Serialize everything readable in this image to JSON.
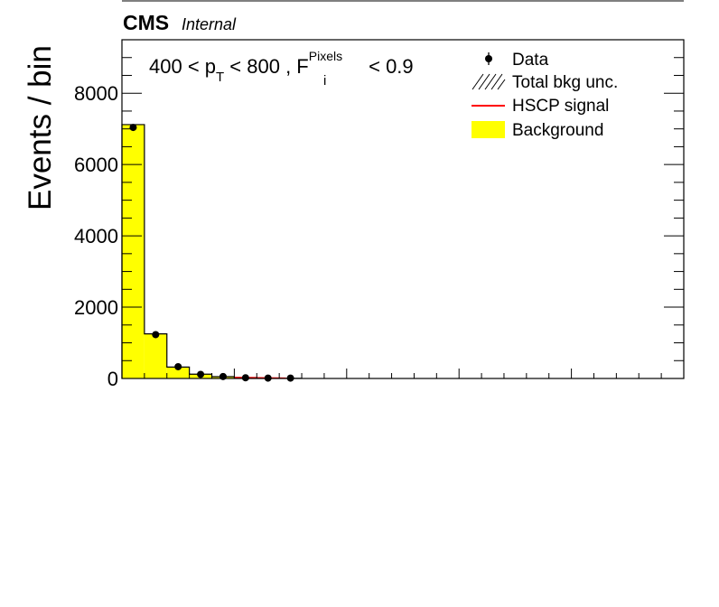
{
  "header": {
    "experiment": "CMS",
    "status": "Internal"
  },
  "chart_data": {
    "type": "bar",
    "ylabel": "Events / bin",
    "ylim": [
      0,
      9500
    ],
    "yticks": [
      0,
      2000,
      4000,
      6000,
      8000
    ],
    "xlim": [
      0,
      25
    ],
    "annotation": {
      "pre": "400 < p",
      "pre_sub": "T",
      "mid": " < 800 , F",
      "sup": "Pixels",
      "sub": "i",
      "post": " < 0.9"
    },
    "legend": {
      "position": "top-right",
      "entries": [
        {
          "label": "Data",
          "style": "marker"
        },
        {
          "label": "Total bkg unc.",
          "style": "hatch"
        },
        {
          "label": "HSCP signal",
          "style": "line",
          "color": "#ff0000"
        },
        {
          "label": "Background",
          "style": "fill",
          "color": "#ffff00"
        }
      ]
    },
    "series": [
      {
        "name": "Background",
        "type": "histogram",
        "color": "#ffff00",
        "bin_edges": [
          0,
          1,
          2,
          3,
          4,
          5,
          6,
          7,
          8
        ],
        "values": [
          7120,
          1250,
          320,
          120,
          50,
          25,
          10,
          5
        ]
      },
      {
        "name": "Data",
        "type": "points",
        "x": [
          0.5,
          1.5,
          2.5,
          3.5,
          4.5,
          5.5,
          6.5,
          7.5
        ],
        "values": [
          7040,
          1230,
          330,
          115,
          55,
          20,
          10,
          10
        ]
      },
      {
        "name": "HSCP signal",
        "type": "line",
        "color": "#ff0000",
        "x": [
          5,
          7.3
        ],
        "values": [
          30,
          10
        ]
      }
    ]
  }
}
